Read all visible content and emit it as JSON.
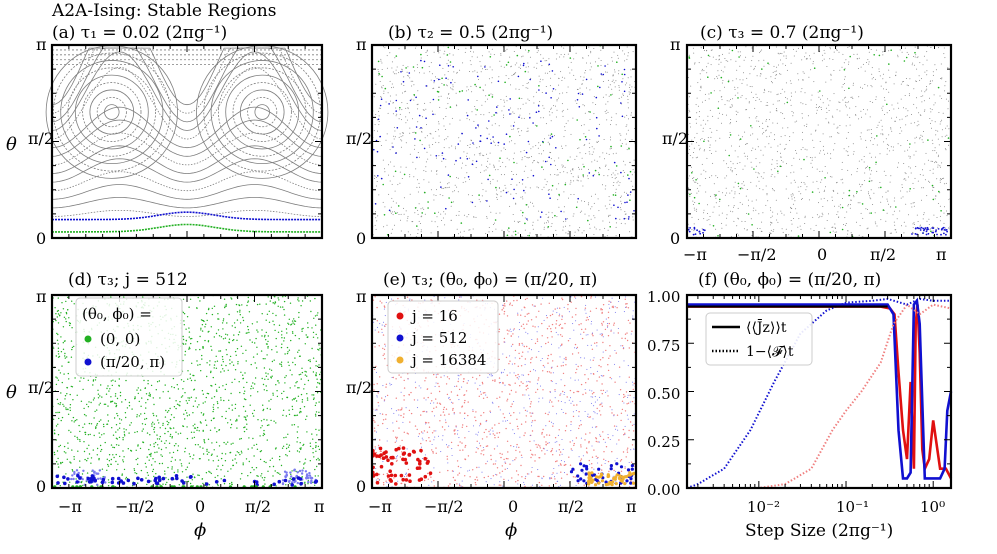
{
  "figure": {
    "title": "A2A-Ising: Stable Regions"
  },
  "axis_text": {
    "pi": "π",
    "pi_half": "π/2",
    "zero": "0",
    "neg_pi": "−π",
    "neg_pi_half": "−π/2",
    "theta": "θ",
    "phi": "ϕ",
    "step_size": "Step Size (2πg⁻¹)"
  },
  "panels": {
    "a": {
      "title": "(a) τ₁ = 0.02 (2πg⁻¹)"
    },
    "b": {
      "title": "(b) τ₂ = 0.5 (2πg⁻¹)"
    },
    "c": {
      "title": "(c) τ₃ = 0.7 (2πg⁻¹)"
    },
    "d": {
      "title": "(d) τ₃; j = 512",
      "legend_title": "(θ₀, ϕ₀) =",
      "legend": [
        "(0, 0)",
        "(π/20, π)"
      ]
    },
    "e": {
      "title": "(e) τ₃; (θ₀, ϕ₀) = (π/20, π)",
      "legend": [
        "j = 16",
        "j = 512",
        "j = 16384"
      ]
    },
    "f": {
      "title": "(f) (θ₀, ϕ₀) = (π/20, π)",
      "legend": [
        "⟨⟨J̄z⟩⟩t",
        "1−⟨𝓕⟩t"
      ],
      "yticks": [
        "0.00",
        "0.25",
        "0.50",
        "0.75",
        "1.00"
      ],
      "xticks": [
        "10⁻²",
        "10⁻¹",
        "10⁰"
      ]
    }
  },
  "colors": {
    "gray": "#7f7f7f",
    "green": "#22b022",
    "blue": "#1010d0",
    "lightblue": "#7b7bef",
    "red": "#e01010",
    "pink": "#f08080",
    "orange": "#f0b030"
  },
  "chart_data": [
    {
      "panel": "a",
      "type": "scatter",
      "title": "(a) τ₁ = 0.02 (2πg⁻¹)",
      "xlabel": "",
      "ylabel": "θ",
      "xlim": [
        -3.1416,
        3.1416
      ],
      "ylim": [
        0,
        3.1416
      ],
      "description_series": [
        {
          "name": "regular orbits",
          "color": "gray"
        },
        {
          "name": "(π/20, π)",
          "color": "blue",
          "theta_level": 0.3
        },
        {
          "name": "(0, 0)",
          "color": "green",
          "theta_level": 0.12
        }
      ]
    },
    {
      "panel": "b",
      "type": "scatter",
      "title": "(b) τ₂ = 0.5 (2πg⁻¹)",
      "xlim": [
        -3.1416,
        3.1416
      ],
      "ylim": [
        0,
        3.1416
      ]
    },
    {
      "panel": "c",
      "type": "scatter",
      "title": "(c) τ₃ = 0.7 (2πg⁻¹)",
      "xlim": [
        -3.1416,
        3.1416
      ],
      "ylim": [
        0,
        3.1416
      ]
    },
    {
      "panel": "d",
      "type": "scatter",
      "title": "(d) τ₃; j = 512",
      "xlabel": "ϕ",
      "ylabel": "θ",
      "xlim": [
        -3.1416,
        3.1416
      ],
      "ylim": [
        0,
        3.1416
      ],
      "series": [
        {
          "name": "(0, 0)",
          "color": "green"
        },
        {
          "name": "(π/20, π)",
          "color": "blue"
        }
      ]
    },
    {
      "panel": "e",
      "type": "scatter",
      "title": "(e) τ₃; (θ₀, ϕ₀) = (π/20, π)",
      "xlabel": "ϕ",
      "xlim": [
        -3.1416,
        3.1416
      ],
      "ylim": [
        0,
        3.1416
      ],
      "series": [
        {
          "name": "j = 16",
          "color": "red"
        },
        {
          "name": "j = 512",
          "color": "blue"
        },
        {
          "name": "j = 16384",
          "color": "orange"
        }
      ]
    },
    {
      "panel": "f",
      "type": "line",
      "title": "(f) (θ₀, ϕ₀) = (π/20, π)",
      "xlabel": "Step Size (2πg⁻¹)",
      "xscale": "log",
      "xlim": [
        0.0015,
        1.6
      ],
      "ylim": [
        0,
        1
      ],
      "series": [
        {
          "name": "⟨⟨J̄z⟩⟩t j=16",
          "color": "red",
          "style": "solid",
          "x": [
            0.0015,
            0.01,
            0.1,
            0.25,
            0.32,
            0.36,
            0.4,
            0.45,
            0.5,
            0.55,
            0.6,
            0.63,
            0.66,
            0.7,
            0.75,
            0.8,
            0.9,
            1.0,
            1.2,
            1.4,
            1.6
          ],
          "y": [
            0.94,
            0.94,
            0.94,
            0.94,
            0.93,
            0.9,
            0.6,
            0.3,
            0.15,
            0.55,
            0.1,
            0.85,
            0.95,
            0.7,
            0.2,
            0.1,
            0.15,
            0.35,
            0.1,
            0.1,
            0.05
          ]
        },
        {
          "name": "⟨⟨J̄z⟩⟩t j=512",
          "color": "blue",
          "style": "solid",
          "x": [
            0.0015,
            0.01,
            0.1,
            0.3,
            0.35,
            0.4,
            0.45,
            0.5,
            0.55,
            0.6,
            0.65,
            0.7,
            0.8,
            1.0,
            1.2,
            1.35,
            1.45,
            1.6
          ],
          "y": [
            0.95,
            0.95,
            0.95,
            0.95,
            0.9,
            0.3,
            0.05,
            0.05,
            0.08,
            0.95,
            0.97,
            0.85,
            0.05,
            0.05,
            0.05,
            0.1,
            0.4,
            0.5
          ]
        },
        {
          "name": "1−⟨𝓕⟩t j=16",
          "color": "pink",
          "style": "dotted",
          "x": [
            0.0015,
            0.01,
            0.02,
            0.04,
            0.07,
            0.1,
            0.15,
            0.25,
            0.35,
            0.5,
            0.7,
            1.0,
            1.6
          ],
          "y": [
            0.0,
            0.0,
            0.02,
            0.1,
            0.3,
            0.4,
            0.5,
            0.65,
            0.85,
            0.95,
            0.9,
            0.95,
            0.93
          ]
        },
        {
          "name": "1−⟨𝓕⟩t j=512",
          "color": "blue",
          "style": "dotted",
          "x": [
            0.0015,
            0.002,
            0.004,
            0.008,
            0.015,
            0.03,
            0.06,
            0.1,
            0.2,
            0.3,
            0.5,
            0.7,
            1.0,
            1.6
          ],
          "y": [
            0.0,
            0.02,
            0.1,
            0.3,
            0.55,
            0.8,
            0.92,
            0.96,
            0.97,
            0.98,
            0.95,
            0.98,
            0.97,
            0.97
          ]
        }
      ]
    }
  ]
}
